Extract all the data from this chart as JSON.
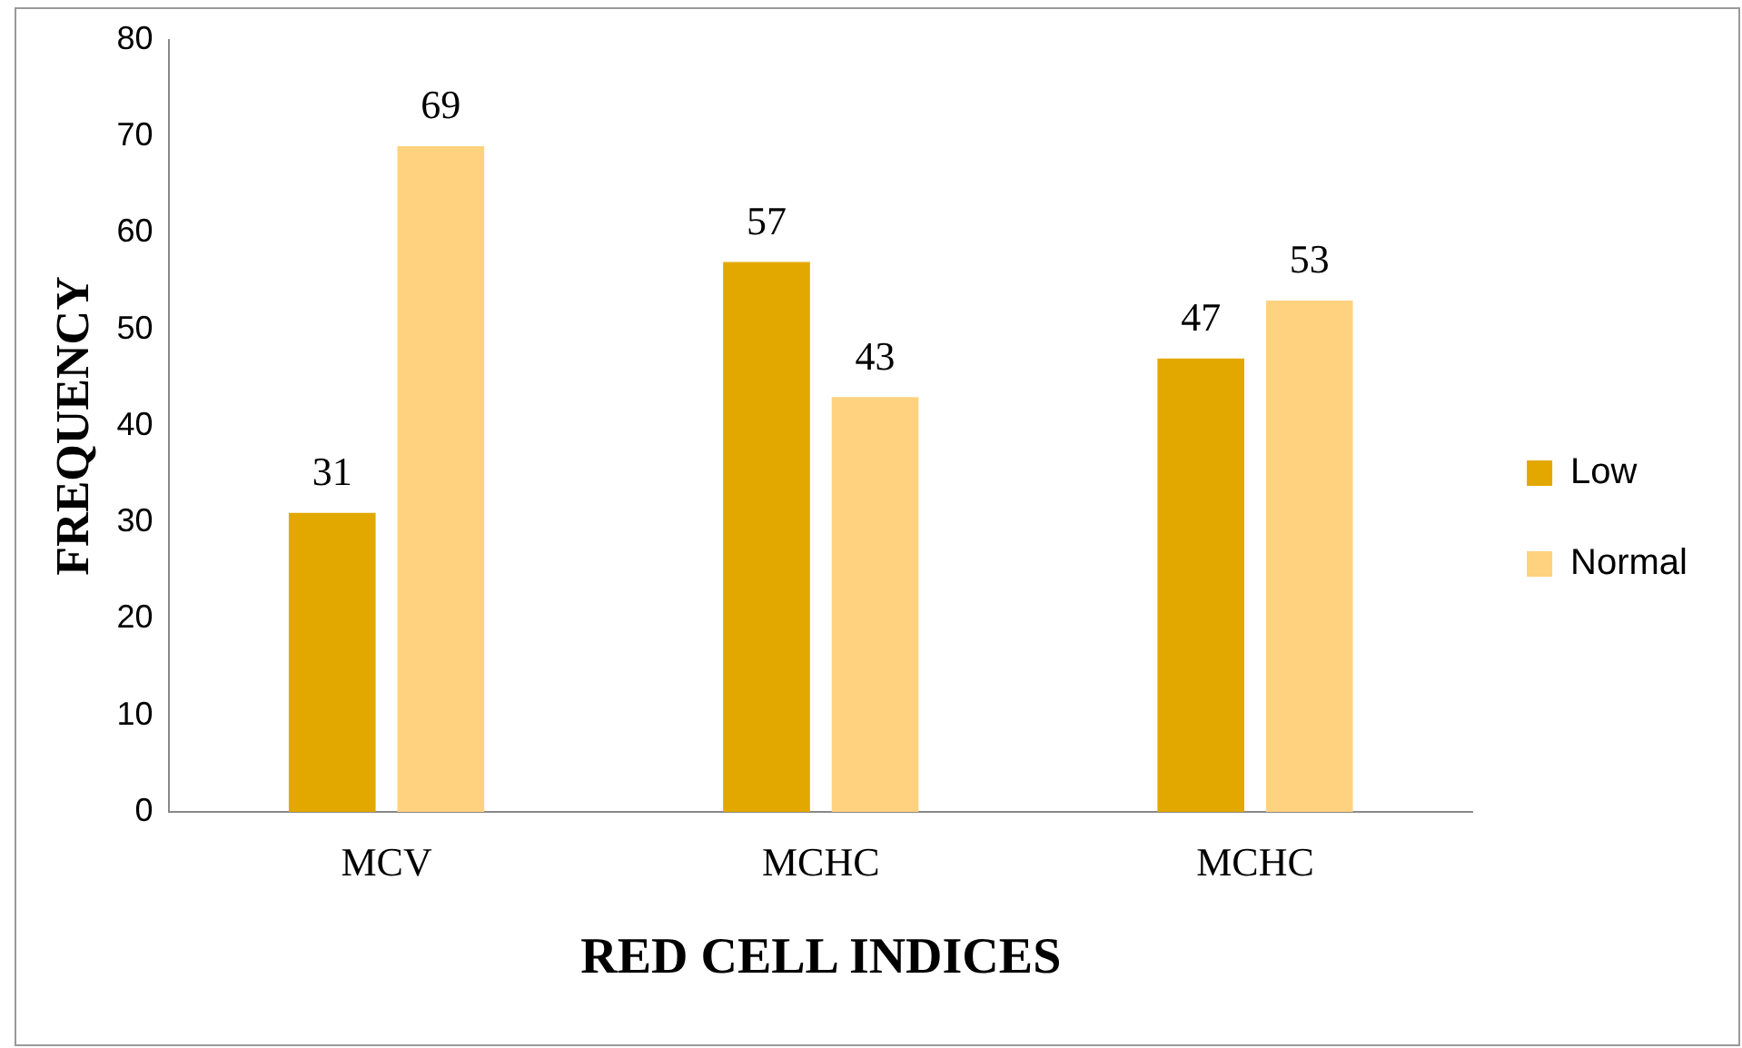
{
  "chart_data": {
    "type": "bar",
    "xlabel": "RED CELL INDICES",
    "ylabel": "FREQUENCY",
    "categories": [
      "MCV",
      "MCHC",
      "MCHC"
    ],
    "series": [
      {
        "name": "Low",
        "color": "#e2a800",
        "values": [
          31,
          57,
          47
        ]
      },
      {
        "name": "Normal",
        "color": "#ffd280",
        "values": [
          69,
          43,
          53
        ]
      }
    ],
    "ylim": [
      0,
      80
    ],
    "yticks": [
      0,
      10,
      20,
      30,
      40,
      50,
      60,
      70,
      80
    ],
    "grid": false,
    "legend": "right",
    "data_labels": true
  }
}
